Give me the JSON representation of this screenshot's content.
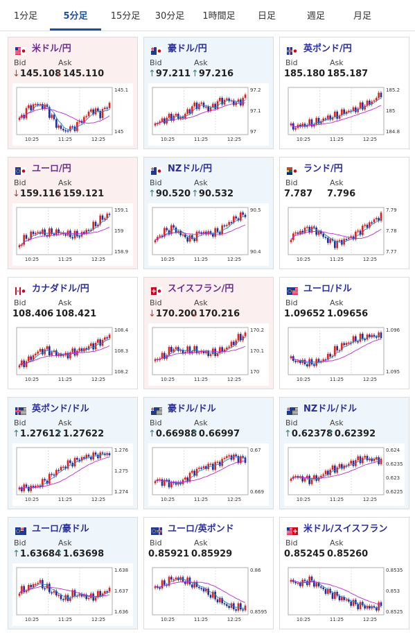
{
  "tabs": [
    {
      "label": "1分足",
      "active": false
    },
    {
      "label": "5分足",
      "active": true
    },
    {
      "label": "15分足",
      "active": false
    },
    {
      "label": "30分足",
      "active": false
    },
    {
      "label": "1時間足",
      "active": false
    },
    {
      "label": "日足",
      "active": false
    },
    {
      "label": "週足",
      "active": false
    },
    {
      "label": "月足",
      "active": false
    }
  ],
  "labels": {
    "bid": "Bid",
    "ask": "Ask"
  },
  "x_ticks": [
    "10:25",
    "11:25",
    "12:25"
  ],
  "cards": [
    {
      "name": "米ドル/円",
      "flag": "us-jp",
      "state": "down",
      "bid": "145.108",
      "ask": "145.110",
      "bid_dir": "down",
      "ask_dir": "down",
      "y_ticks": [
        "145.1",
        "145"
      ],
      "trend": [
        0.3,
        0.6,
        0.7,
        0.6,
        0.2,
        0.0,
        0.1,
        0.3,
        0.55,
        0.45,
        0.7
      ]
    },
    {
      "name": "豪ドル/円",
      "flag": "au-jp",
      "state": "up",
      "bid": "97.211",
      "ask": "97.216",
      "bid_dir": "up",
      "ask_dir": "up",
      "y_ticks": [
        "97.2",
        "97.1",
        "97"
      ],
      "trend": [
        0.2,
        0.3,
        0.4,
        0.35,
        0.6,
        0.7,
        0.55,
        0.75,
        0.8,
        0.7,
        0.85
      ]
    },
    {
      "name": "英ポンド/円",
      "flag": "gb-jp",
      "state": "flat",
      "bid": "185.180",
      "ask": "185.187",
      "bid_dir": "",
      "ask_dir": "",
      "y_ticks": [
        "185.2",
        "185",
        "184.8"
      ],
      "trend": [
        0.1,
        0.15,
        0.2,
        0.25,
        0.35,
        0.4,
        0.5,
        0.55,
        0.65,
        0.75,
        0.95
      ]
    },
    {
      "name": "ユーロ/円",
      "flag": "eu-jp",
      "state": "down",
      "bid": "159.116",
      "ask": "159.121",
      "bid_dir": "down",
      "ask_dir": "down",
      "y_ticks": [
        "159.1",
        "159",
        "158.9"
      ],
      "trend": [
        0.2,
        0.4,
        0.5,
        0.45,
        0.5,
        0.45,
        0.4,
        0.45,
        0.6,
        0.8,
        0.95
      ]
    },
    {
      "name": "NZドル/円",
      "flag": "nz-jp",
      "state": "up",
      "bid": "90.520",
      "ask": "90.532",
      "bid_dir": "up",
      "ask_dir": "up",
      "y_ticks": [
        "90.5",
        "90.4"
      ],
      "trend": [
        0.3,
        0.5,
        0.6,
        0.4,
        0.3,
        0.5,
        0.45,
        0.5,
        0.7,
        0.85,
        0.95
      ]
    },
    {
      "name": "ランド/円",
      "flag": "za-jp",
      "state": "flat",
      "bid": "7.787",
      "ask": "7.796",
      "bid_dir": "",
      "ask_dir": "",
      "y_ticks": [
        "7.79",
        "7.78",
        "7.77"
      ],
      "trend": [
        0.4,
        0.5,
        0.6,
        0.5,
        0.3,
        0.2,
        0.3,
        0.4,
        0.6,
        0.75,
        0.9
      ]
    },
    {
      "name": "カナダドル/円",
      "flag": "ca-jp",
      "state": "flat",
      "bid": "108.406",
      "ask": "108.421",
      "bid_dir": "",
      "ask_dir": "",
      "y_ticks": [
        "108.4",
        "108.3",
        "108.2"
      ],
      "trend": [
        0.15,
        0.3,
        0.5,
        0.55,
        0.45,
        0.4,
        0.5,
        0.55,
        0.65,
        0.75,
        0.9
      ]
    },
    {
      "name": "スイスフラン/円",
      "flag": "ch-jp",
      "state": "down",
      "bid": "170.200",
      "ask": "170.216",
      "bid_dir": "down",
      "ask_dir": "down",
      "y_ticks": [
        "170.2",
        "170.1",
        "170"
      ],
      "trend": [
        0.3,
        0.4,
        0.6,
        0.5,
        0.55,
        0.5,
        0.45,
        0.5,
        0.6,
        0.8,
        0.95
      ]
    },
    {
      "name": "ユーロ/ドル",
      "flag": "eu-us",
      "state": "flat",
      "bid": "1.09652",
      "ask": "1.09656",
      "bid_dir": "",
      "ask_dir": "",
      "y_ticks": [
        "1.096",
        "1.095"
      ],
      "trend": [
        0.3,
        0.25,
        0.2,
        0.25,
        0.35,
        0.55,
        0.7,
        0.8,
        0.85,
        0.9,
        0.9
      ]
    },
    {
      "name": "英ポンド/ドル",
      "flag": "gb-us",
      "state": "up",
      "bid": "1.27612",
      "ask": "1.27622",
      "bid_dir": "up",
      "ask_dir": "up",
      "y_ticks": [
        "1.276",
        "1.275",
        "1.274"
      ],
      "trend": [
        0.1,
        0.1,
        0.15,
        0.3,
        0.5,
        0.65,
        0.75,
        0.85,
        0.9,
        0.95,
        0.95
      ]
    },
    {
      "name": "豪ドル/ドル",
      "flag": "au-us",
      "state": "up",
      "bid": "0.66988",
      "ask": "0.66997",
      "bid_dir": "up",
      "ask_dir": "up",
      "y_ticks": [
        "0.67",
        "0.669"
      ],
      "trend": [
        0.3,
        0.25,
        0.2,
        0.25,
        0.45,
        0.6,
        0.65,
        0.7,
        0.9,
        0.85,
        0.8
      ]
    },
    {
      "name": "NZドル/ドル",
      "flag": "nz-us",
      "state": "up",
      "bid": "0.62378",
      "ask": "0.62392",
      "bid_dir": "up",
      "ask_dir": "up",
      "y_ticks": [
        "0.624",
        "0.6235",
        "0.623",
        "0.6225"
      ],
      "trend": [
        0.4,
        0.35,
        0.3,
        0.35,
        0.5,
        0.6,
        0.65,
        0.75,
        0.85,
        0.8,
        0.8
      ]
    },
    {
      "name": "ユーロ/豪ドル",
      "flag": "eu-au",
      "state": "up",
      "bid": "1.63684",
      "ask": "1.63698",
      "bid_dir": "up",
      "ask_dir": "up",
      "y_ticks": [
        "1.638",
        "1.637",
        "1.636"
      ],
      "trend": [
        0.5,
        0.6,
        0.75,
        0.6,
        0.45,
        0.3,
        0.45,
        0.4,
        0.35,
        0.45,
        0.55
      ]
    },
    {
      "name": "ユーロ/英ポンド",
      "flag": "eu-gb",
      "state": "flat",
      "bid": "0.85921",
      "ask": "0.85929",
      "bid_dir": "",
      "ask_dir": "",
      "y_ticks": [
        "0.86",
        "0.8595"
      ],
      "trend": [
        0.6,
        0.7,
        0.85,
        0.8,
        0.7,
        0.6,
        0.45,
        0.3,
        0.15,
        0.1,
        0.1
      ]
    },
    {
      "name": "米ドル/スイスフラン",
      "flag": "us-ch",
      "state": "flat",
      "bid": "0.85245",
      "ask": "0.85260",
      "bid_dir": "",
      "ask_dir": "",
      "y_ticks": [
        "0.8535",
        "0.853",
        "0.8525"
      ],
      "trend": [
        0.75,
        0.7,
        0.8,
        0.65,
        0.5,
        0.4,
        0.3,
        0.2,
        0.15,
        0.1,
        0.15
      ]
    }
  ]
}
